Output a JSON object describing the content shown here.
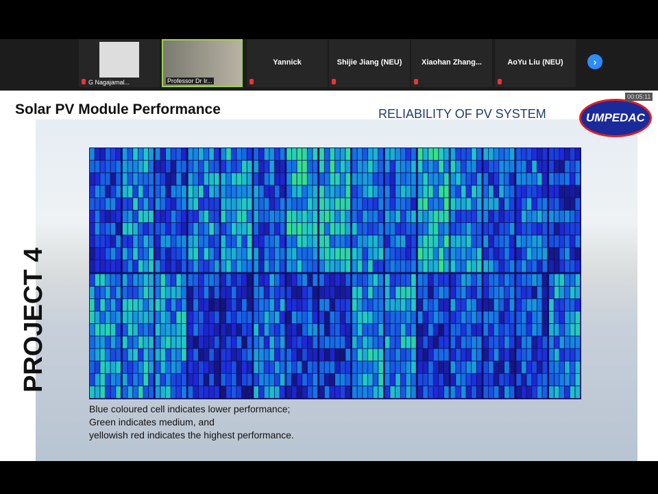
{
  "participants": [
    {
      "name": "G Nagajamal..."
    },
    {
      "name": "Professor Dr Ir..."
    },
    {
      "name": "Yannick"
    },
    {
      "name": "Shijie Jiang (NEU)"
    },
    {
      "name": "Xiaohan  Zhang..."
    },
    {
      "name": "AoYu Liu (NEU)"
    }
  ],
  "timer": "00:05:11",
  "slide": {
    "title": "Solar PV Module Performance",
    "subtitle": "RELIABILITY OF PV SYSTEM",
    "logo": "UMPEDAC",
    "side_label": "PROJECT 4",
    "caption": [
      "Blue coloured cell indicates lower performance;",
      "Green indicates medium, and",
      "yellowish red indicates the highest performance."
    ]
  }
}
